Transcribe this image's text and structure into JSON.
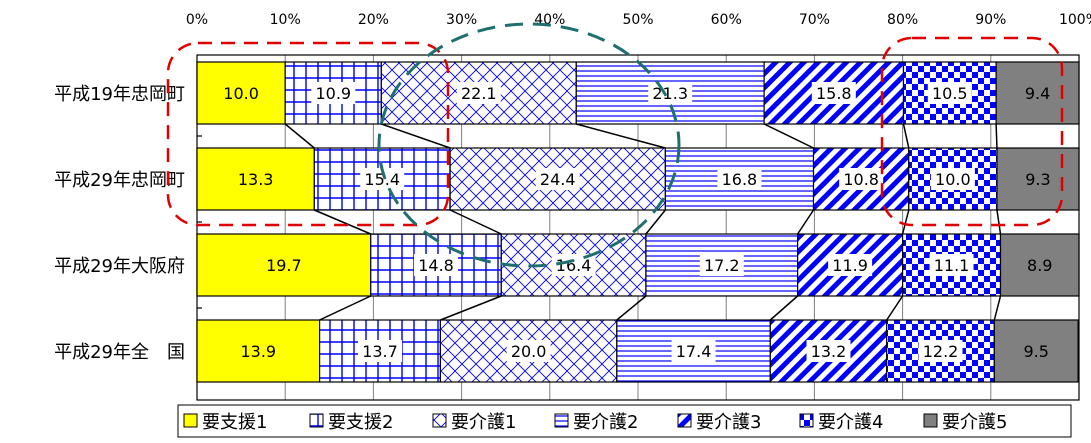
{
  "chart_data": {
    "type": "bar",
    "orientation": "horizontal",
    "stacked": "percent",
    "x_ticks": [
      "0%",
      "10%",
      "20%",
      "30%",
      "40%",
      "50%",
      "60%",
      "70%",
      "80%",
      "90%",
      "100%"
    ],
    "xlim": [
      0,
      100
    ],
    "categories": [
      "平成19年忠岡町",
      "平成29年忠岡町",
      "平成29年大阪府",
      "平成29年全　国"
    ],
    "series": [
      {
        "name": "要支援1",
        "color": "#ffff00",
        "pattern": "solid",
        "values": [
          10.0,
          13.3,
          19.7,
          13.9
        ]
      },
      {
        "name": "要支援2",
        "color": "#0000ff",
        "pattern": "grid",
        "values": [
          10.9,
          15.4,
          14.8,
          13.7
        ]
      },
      {
        "name": "要介護1",
        "color": "#0000ff",
        "pattern": "diagonal-cross",
        "values": [
          22.1,
          24.4,
          16.4,
          20.0
        ]
      },
      {
        "name": "要介護2",
        "color": "#0000ff",
        "pattern": "horizontal-lines",
        "values": [
          21.3,
          16.8,
          17.2,
          17.4
        ]
      },
      {
        "name": "要介護3",
        "color": "#0000ff",
        "pattern": "wide-diagonal",
        "values": [
          15.8,
          10.8,
          11.9,
          13.2
        ]
      },
      {
        "name": "要介護4",
        "color": "#0000ff",
        "pattern": "checkerboard",
        "values": [
          10.5,
          10.0,
          11.1,
          12.2
        ]
      },
      {
        "name": "要介護5",
        "color": "#808080",
        "pattern": "solid",
        "values": [
          9.4,
          9.3,
          8.9,
          9.5
        ]
      }
    ],
    "value_labels": [
      [
        "10.0",
        "10.9",
        "22.1",
        "21.3",
        "15.8",
        "10.5",
        "9.4"
      ],
      [
        "13.3",
        "15.4",
        "24.4",
        "16.8",
        "10.8",
        "10.0",
        "9.3"
      ],
      [
        "19.7",
        "14.8",
        "16.4",
        "17.2",
        "11.9",
        "11.1",
        "8.9"
      ],
      [
        "13.9",
        "13.7",
        "20.0",
        "17.4",
        "13.2",
        "12.2",
        "9.5"
      ]
    ],
    "series_lines": true,
    "legend_position": "bottom",
    "annotations": [
      {
        "shape": "rounded-rect",
        "style": "dashed",
        "color": "#e00000"
      },
      {
        "shape": "ellipse",
        "style": "dashed",
        "color": "#1f6f6f"
      },
      {
        "shape": "rounded-rect",
        "style": "dashed",
        "color": "#e00000"
      }
    ]
  }
}
